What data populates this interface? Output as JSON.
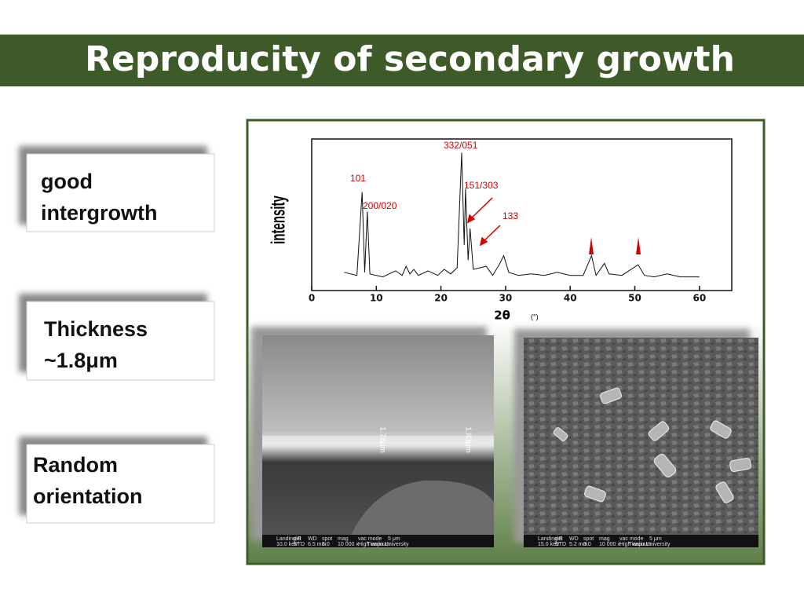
{
  "header": {
    "title": "Reproducity of secondary growth"
  },
  "points": [
    {
      "lines": [
        "good",
        "intergrowth"
      ]
    },
    {
      "lines": [
        "Thickness",
        "~1.8μm"
      ]
    },
    {
      "lines": [
        "Random",
        "orientation"
      ]
    }
  ],
  "chart_data": {
    "type": "line",
    "x_label": "2θ",
    "x_unit": "(°)",
    "y_label": "intensity",
    "x": [
      5,
      7,
      7.8,
      8.2,
      8.6,
      9,
      11,
      13,
      14,
      14.6,
      15.2,
      15.8,
      16.5,
      18,
      19.5,
      20.5,
      21.5,
      22.5,
      23.2,
      23.6,
      23.8,
      24.2,
      24.5,
      25,
      26,
      27,
      28,
      29,
      29.7,
      30.5,
      32,
      34,
      36,
      38,
      40,
      42,
      43.3,
      44,
      45.3,
      46,
      48,
      50.5,
      51.5,
      53,
      55,
      57,
      60
    ],
    "values": [
      12,
      10,
      65,
      12,
      52,
      11,
      9,
      13,
      10,
      16,
      11,
      14,
      10,
      13,
      10,
      14,
      11,
      15,
      91,
      30,
      67,
      20,
      41,
      14,
      15,
      16,
      10,
      17,
      23,
      12,
      10,
      11,
      10,
      12,
      10,
      10,
      23,
      10,
      18,
      11,
      10,
      17,
      10,
      9,
      11,
      9,
      9
    ],
    "color": "#111111",
    "xlim": [
      0,
      65
    ],
    "ylim": [
      0,
      100
    ],
    "xticks": [
      0,
      10,
      20,
      30,
      40,
      50,
      60
    ],
    "annotations": [
      "332/051",
      "101",
      "200/020",
      "151/303",
      "133"
    ],
    "annotation_color": "#d40000"
  },
  "images": [
    {
      "scale_labels": [
        "1.76μm",
        "1.83μm"
      ],
      "info_bar": [
        "Landing E",
        "det",
        "WD",
        "spot",
        "mag",
        "vac mode",
        "5 μm",
        "10.0 keV",
        "ETD",
        "6.5 mm",
        "3.0",
        "10 000 x",
        "High vacuum",
        "Tianjin University"
      ]
    },
    {
      "scale_labels": [],
      "info_bar": [
        "Landing E",
        "det",
        "WD",
        "spot",
        "mag",
        "vac mode",
        "5 μm",
        "15.0 keV",
        "ETD",
        "5.2 mm",
        "3.0",
        "10 000 x",
        "High vacuum",
        "Tianjin University"
      ]
    }
  ]
}
